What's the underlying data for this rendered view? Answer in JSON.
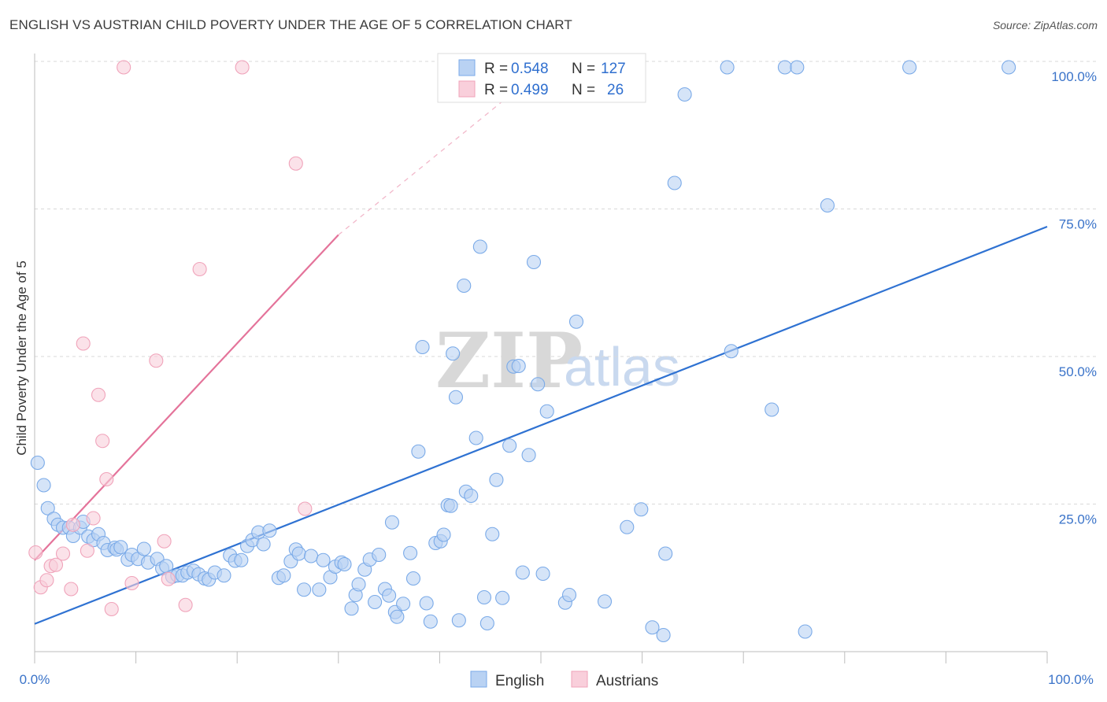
{
  "title": "ENGLISH VS AUSTRIAN CHILD POVERTY UNDER THE AGE OF 5 CORRELATION CHART",
  "source": "Source: ZipAtlas.com",
  "watermark": {
    "zip": "ZIP",
    "atlas": "atlas"
  },
  "colors": {
    "english": "#7aaae8",
    "english_fill": "#b9d2f3",
    "english_line": "#2f72d2",
    "austrians": "#f0a3ba",
    "austrians_fill": "#f9cfdb",
    "austrians_line": "#e4739a",
    "tick_text": "#3a73c9",
    "grid": "#d9d9d9"
  },
  "stats_box": {
    "rows": [
      {
        "series": "English",
        "r_label": "R =",
        "r_value": "0.548",
        "n_label": "N =",
        "n_value": "127"
      },
      {
        "series": "Austrians",
        "r_label": "R =",
        "r_value": "0.499",
        "n_label": "N =",
        "n_value": "26"
      }
    ]
  },
  "chart_data": {
    "type": "scatter",
    "title": "ENGLISH VS AUSTRIAN CHILD POVERTY UNDER THE AGE OF 5 CORRELATION CHART",
    "xlabel": "",
    "ylabel": "Child Poverty Under the Age of 5",
    "xlim": [
      0,
      100
    ],
    "ylim": [
      0,
      100
    ],
    "x_tick_labels": [
      "0.0%",
      "100.0%"
    ],
    "y_ticks": [
      25,
      50,
      75,
      100
    ],
    "y_tick_labels": [
      "25.0%",
      "50.0%",
      "75.0%",
      "100.0%"
    ],
    "grid": true,
    "legend_position": "bottom-center",
    "legend": [
      "English",
      "Austrians"
    ],
    "series": [
      {
        "name": "English",
        "r": 0.548,
        "n": 127,
        "trendline": {
          "x": [
            0,
            100
          ],
          "y": [
            4.7,
            72.0
          ]
        },
        "points": [
          [
            0.3,
            32
          ],
          [
            0.9,
            28.2
          ],
          [
            1.3,
            24.3
          ],
          [
            1.9,
            22.5
          ],
          [
            2.3,
            21.5
          ],
          [
            2.8,
            21
          ],
          [
            3.4,
            21
          ],
          [
            3.8,
            19.6
          ],
          [
            4.5,
            21
          ],
          [
            4.8,
            22
          ],
          [
            5.3,
            19.5
          ],
          [
            5.8,
            18.9
          ],
          [
            6.3,
            19.9
          ],
          [
            6.8,
            18.4
          ],
          [
            7.2,
            17.2
          ],
          [
            7.9,
            17.6
          ],
          [
            8.1,
            17.3
          ],
          [
            8.5,
            17.7
          ],
          [
            9.2,
            15.6
          ],
          [
            9.6,
            16.4
          ],
          [
            10.2,
            15.7
          ],
          [
            10.8,
            17.4
          ],
          [
            11.2,
            15.1
          ],
          [
            12.1,
            15.7
          ],
          [
            12.6,
            14.1
          ],
          [
            13.0,
            14.5
          ],
          [
            13.6,
            12.7
          ],
          [
            14.1,
            12.9
          ],
          [
            14.6,
            12.9
          ],
          [
            15.1,
            13.4
          ],
          [
            15.7,
            13.7
          ],
          [
            16.2,
            13.1
          ],
          [
            16.8,
            12.4
          ],
          [
            17.2,
            12.2
          ],
          [
            17.8,
            13.4
          ],
          [
            18.7,
            12.9
          ],
          [
            19.3,
            16.3
          ],
          [
            19.8,
            15.4
          ],
          [
            20.4,
            15.5
          ],
          [
            21.0,
            17.9
          ],
          [
            21.5,
            18.9
          ],
          [
            22.1,
            20.2
          ],
          [
            22.6,
            18.2
          ],
          [
            23.2,
            20.5
          ],
          [
            24.1,
            12.5
          ],
          [
            24.6,
            12.9
          ],
          [
            25.3,
            15.3
          ],
          [
            25.8,
            17.3
          ],
          [
            26.1,
            16.6
          ],
          [
            26.6,
            10.5
          ],
          [
            27.3,
            16.2
          ],
          [
            28.1,
            10.5
          ],
          [
            28.5,
            15.5
          ],
          [
            29.2,
            12.6
          ],
          [
            29.7,
            14.4
          ],
          [
            30.3,
            15.1
          ],
          [
            30.6,
            14.8
          ],
          [
            31.3,
            7.3
          ],
          [
            31.7,
            9.6
          ],
          [
            32.0,
            11.4
          ],
          [
            32.6,
            13.9
          ],
          [
            33.1,
            15.6
          ],
          [
            33.6,
            8.4
          ],
          [
            34.0,
            16.4
          ],
          [
            34.6,
            10.6
          ],
          [
            35.0,
            9.5
          ],
          [
            35.3,
            21.9
          ],
          [
            35.6,
            6.7
          ],
          [
            35.8,
            5.9
          ],
          [
            36.4,
            8.1
          ],
          [
            37.1,
            16.7
          ],
          [
            37.4,
            12.4
          ],
          [
            37.9,
            33.9
          ],
          [
            38.3,
            51.6
          ],
          [
            38.7,
            8.2
          ],
          [
            39.1,
            5.1
          ],
          [
            39.6,
            18.4
          ],
          [
            40.1,
            18.7
          ],
          [
            40.4,
            19.8
          ],
          [
            40.8,
            24.8
          ],
          [
            41.1,
            24.7
          ],
          [
            41.3,
            50.5
          ],
          [
            41.6,
            43.1
          ],
          [
            41.9,
            5.3
          ],
          [
            42.4,
            62
          ],
          [
            42.6,
            27.1
          ],
          [
            43.1,
            26.4
          ],
          [
            43.6,
            36.2
          ],
          [
            44.0,
            68.6
          ],
          [
            44.4,
            9.2
          ],
          [
            44.7,
            4.8
          ],
          [
            45.2,
            19.9
          ],
          [
            45.6,
            29.1
          ],
          [
            46.2,
            9.1
          ],
          [
            46.9,
            34.9
          ],
          [
            47.3,
            48.3
          ],
          [
            47.8,
            48.4
          ],
          [
            48.2,
            13.4
          ],
          [
            48.8,
            33.3
          ],
          [
            49.3,
            66.0
          ],
          [
            49.7,
            45.3
          ],
          [
            50.2,
            13.2
          ],
          [
            50.6,
            40.7
          ],
          [
            51.5,
            99
          ],
          [
            52.4,
            8.3
          ],
          [
            52.8,
            9.6
          ],
          [
            53.5,
            55.9
          ],
          [
            54.0,
            99
          ],
          [
            56.3,
            8.5
          ],
          [
            58.5,
            21.1
          ],
          [
            59.2,
            98.9
          ],
          [
            59.9,
            24.1
          ],
          [
            61.0,
            4.1
          ],
          [
            62.1,
            2.8
          ],
          [
            62.3,
            16.6
          ],
          [
            64.2,
            94.4
          ],
          [
            63.2,
            79.4
          ],
          [
            68.4,
            99
          ],
          [
            68.8,
            50.9
          ],
          [
            72.8,
            41
          ],
          [
            74.1,
            99
          ],
          [
            75.3,
            99
          ],
          [
            76.1,
            3.4
          ],
          [
            78.3,
            75.6
          ],
          [
            86.4,
            99
          ],
          [
            96.2,
            99
          ]
        ]
      },
      {
        "name": "Austrians",
        "r": 0.499,
        "n": 26,
        "trendline": {
          "x": [
            0,
            30
          ],
          "y": [
            15.5,
            70.6
          ]
        },
        "trendline_extension": {
          "x": [
            30,
            52
          ],
          "y": [
            70.6,
            110.9
          ]
        },
        "points": [
          [
            0.1,
            16.8
          ],
          [
            0.6,
            10.9
          ],
          [
            1.2,
            12.1
          ],
          [
            1.6,
            14.5
          ],
          [
            2.1,
            14.7
          ],
          [
            2.8,
            16.6
          ],
          [
            3.6,
            10.6
          ],
          [
            3.8,
            21.5
          ],
          [
            4.8,
            52.2
          ],
          [
            5.2,
            17.1
          ],
          [
            5.8,
            22.6
          ],
          [
            6.3,
            43.5
          ],
          [
            6.7,
            35.7
          ],
          [
            7.1,
            29.2
          ],
          [
            7.6,
            7.2
          ],
          [
            8.8,
            99
          ],
          [
            9.6,
            11.6
          ],
          [
            12.0,
            49.3
          ],
          [
            12.8,
            18.7
          ],
          [
            13.2,
            12.3
          ],
          [
            14.9,
            7.9
          ],
          [
            16.3,
            64.8
          ],
          [
            20.5,
            99
          ],
          [
            25.8,
            82.7
          ],
          [
            26.7,
            24.2
          ]
        ]
      }
    ]
  }
}
